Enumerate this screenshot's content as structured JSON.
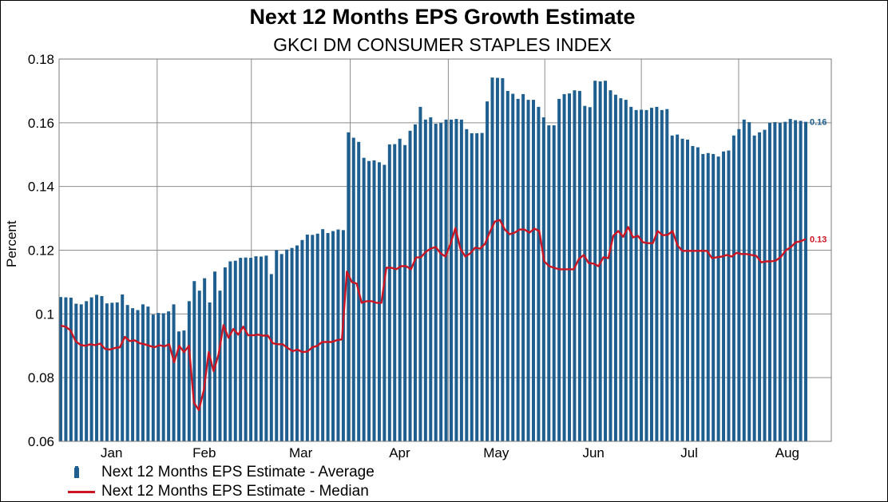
{
  "chart_data": {
    "type": "bar",
    "title": "Next 12 Months EPS Growth Estimate",
    "subtitle": "GKCI DM CONSUMER STAPLES INDEX",
    "ylabel": "Percent",
    "xlabel": "",
    "ylim": [
      0.06,
      0.18
    ],
    "y_ticks": [
      "0.06",
      "0.08",
      "0.1",
      "0.12",
      "0.14",
      "0.16",
      "0.18"
    ],
    "x_tick_labels": [
      "Jan",
      "Feb",
      "Mar",
      "Apr",
      "May",
      "Jun",
      "Jul",
      "Aug"
    ],
    "grid": true,
    "legend_position": "bottom-left",
    "series": [
      {
        "name": "Next 12 Months EPS Estimate - Average",
        "kind": "bar",
        "color": "#1f5f8f",
        "end_label": "0.16",
        "values": [
          0.1053,
          0.1052,
          0.1051,
          0.1032,
          0.103,
          0.104,
          0.1052,
          0.106,
          0.1056,
          0.1033,
          0.1035,
          0.1036,
          0.1061,
          0.1028,
          0.1018,
          0.1012,
          0.103,
          0.1023,
          0.0998,
          0.1003,
          0.1002,
          0.1008,
          0.103,
          0.0945,
          0.0948,
          0.104,
          0.1103,
          0.1073,
          0.1112,
          0.1036,
          0.1133,
          0.1073,
          0.1146,
          0.1165,
          0.1167,
          0.1176,
          0.1177,
          0.1176,
          0.1181,
          0.118,
          0.1183,
          0.1125,
          0.12,
          0.1188,
          0.1202,
          0.1207,
          0.1215,
          0.1232,
          0.1249,
          0.1248,
          0.1252,
          0.1266,
          0.1254,
          0.126,
          0.1265,
          0.1263,
          0.157,
          0.1553,
          0.154,
          0.149,
          0.148,
          0.1482,
          0.1476,
          0.1468,
          0.1532,
          0.1533,
          0.155,
          0.153,
          0.1575,
          0.1595,
          0.165,
          0.161,
          0.1617,
          0.1597,
          0.16,
          0.161,
          0.161,
          0.1612,
          0.161,
          0.158,
          0.1567,
          0.1567,
          0.1568,
          0.1667,
          0.1742,
          0.1741,
          0.174,
          0.17,
          0.1691,
          0.1675,
          0.169,
          0.1672,
          0.1672,
          0.165,
          0.1617,
          0.1592,
          0.1592,
          0.1675,
          0.169,
          0.1692,
          0.1702,
          0.17,
          0.1653,
          0.1649,
          0.1732,
          0.173,
          0.1732,
          0.1702,
          0.1688,
          0.1677,
          0.1672,
          0.165,
          0.164,
          0.1641,
          0.164,
          0.1647,
          0.165,
          0.164,
          0.1643,
          0.156,
          0.1563,
          0.155,
          0.1547,
          0.1527,
          0.1523,
          0.1502,
          0.1505,
          0.1502,
          0.1494,
          0.151,
          0.1513,
          0.156,
          0.158,
          0.161,
          0.1602,
          0.156,
          0.157,
          0.1578,
          0.16,
          0.1602,
          0.16,
          0.1603,
          0.1612,
          0.1608,
          0.1606,
          0.1603
        ]
      },
      {
        "name": "Next 12 Months EPS Estimate - Median",
        "kind": "line",
        "color": "#cc1422",
        "end_label": "0.13",
        "values": [
          0.0963,
          0.096,
          0.0948,
          0.0915,
          0.0903,
          0.09,
          0.0905,
          0.0902,
          0.0907,
          0.089,
          0.0888,
          0.0893,
          0.0895,
          0.0928,
          0.0915,
          0.0917,
          0.0908,
          0.0905,
          0.09,
          0.0895,
          0.0902,
          0.0898,
          0.0905,
          0.0848,
          0.09,
          0.088,
          0.09,
          0.0722,
          0.0698,
          0.076,
          0.088,
          0.082,
          0.0873,
          0.0965,
          0.0925,
          0.0953,
          0.0935,
          0.096,
          0.0933,
          0.0933,
          0.0935,
          0.0932,
          0.0932,
          0.0908,
          0.0905,
          0.0905,
          0.0893,
          0.0883,
          0.0888,
          0.088,
          0.0882,
          0.0895,
          0.09,
          0.0912,
          0.0912,
          0.0912,
          0.0918,
          0.092,
          0.1133,
          0.11,
          0.1095,
          0.1035,
          0.104,
          0.104,
          0.1035,
          0.1035,
          0.1145,
          0.1145,
          0.114,
          0.115,
          0.115,
          0.114,
          0.1177,
          0.1178,
          0.1195,
          0.1205,
          0.121,
          0.119,
          0.118,
          0.122,
          0.127,
          0.1205,
          0.118,
          0.119,
          0.1208,
          0.1205,
          0.122,
          0.1258,
          0.129,
          0.1295,
          0.1265,
          0.125,
          0.1255,
          0.1265,
          0.1265,
          0.1255,
          0.1268,
          0.126,
          0.1165,
          0.115,
          0.1145,
          0.114,
          0.114,
          0.114,
          0.114,
          0.1172,
          0.1185,
          0.116,
          0.1158,
          0.115,
          0.1178,
          0.1175,
          0.1245,
          0.126,
          0.1242,
          0.1273,
          0.124,
          0.1245,
          0.1225,
          0.1222,
          0.1222,
          0.126,
          0.1247,
          0.1248,
          0.126,
          0.1215,
          0.1198,
          0.1198,
          0.1198,
          0.1198,
          0.1198,
          0.1198,
          0.1175,
          0.1178,
          0.118,
          0.1185,
          0.118,
          0.1192,
          0.1188,
          0.1188,
          0.1185,
          0.1182,
          0.1162,
          0.1165,
          0.1165,
          0.1168,
          0.118,
          0.12,
          0.121,
          0.1225,
          0.1228,
          0.1235
        ]
      }
    ]
  }
}
